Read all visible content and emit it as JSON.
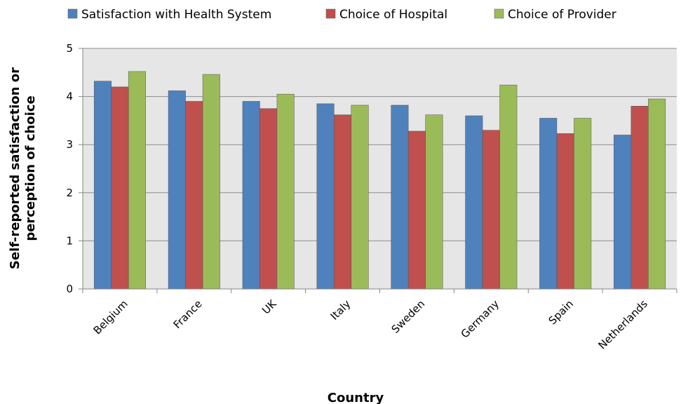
{
  "chart_data": {
    "type": "bar",
    "title": "",
    "xlabel": "Country",
    "ylabel": [
      "Self-reported satisfaction or",
      "perception of choice"
    ],
    "ylim": [
      0,
      5
    ],
    "yticks": [
      "0",
      "1",
      "2",
      "3",
      "4",
      "5"
    ],
    "grid": true,
    "legend_position": "top",
    "categories": [
      "Belgium",
      "France",
      "UK",
      "Italy",
      "Sweden",
      "Germany",
      "Spain",
      "Netherlands"
    ],
    "series": [
      {
        "name": "Satisfaction with Health System",
        "color": "#4f81bd",
        "values": [
          4.32,
          4.12,
          3.9,
          3.85,
          3.82,
          3.6,
          3.55,
          3.2
        ]
      },
      {
        "name": "Choice of Hospital",
        "color": "#c0504d",
        "values": [
          4.2,
          3.9,
          3.75,
          3.62,
          3.28,
          3.3,
          3.23,
          3.8
        ]
      },
      {
        "name": "Choice of Provider",
        "color": "#9bbb59",
        "values": [
          4.52,
          4.46,
          4.05,
          3.82,
          3.62,
          4.24,
          3.55,
          3.95
        ]
      }
    ]
  }
}
